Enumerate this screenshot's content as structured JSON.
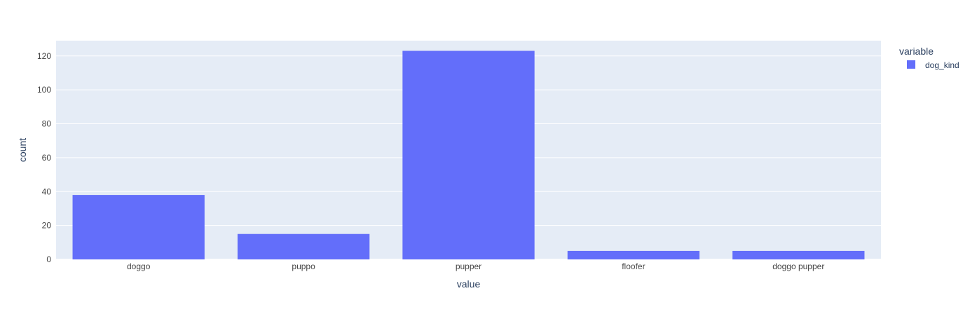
{
  "chart_data": {
    "type": "bar",
    "categories": [
      "doggo",
      "puppo",
      "pupper",
      "floofer",
      "doggo pupper"
    ],
    "series": [
      {
        "name": "dog_kind",
        "values": [
          38,
          15,
          123,
          5,
          5
        ],
        "color": "#636efa"
      }
    ],
    "xlabel": "value",
    "ylabel": "count",
    "ylim": [
      0,
      129
    ],
    "yticks": [
      0,
      20,
      40,
      60,
      80,
      100,
      120
    ],
    "grid": true,
    "legend": {
      "title": "variable",
      "position": "top-right"
    },
    "colors": {
      "plot_background": "#e5ecf6",
      "gridline": "#ffffff",
      "text": "#2a3f5f",
      "tick_text": "#444444"
    }
  }
}
